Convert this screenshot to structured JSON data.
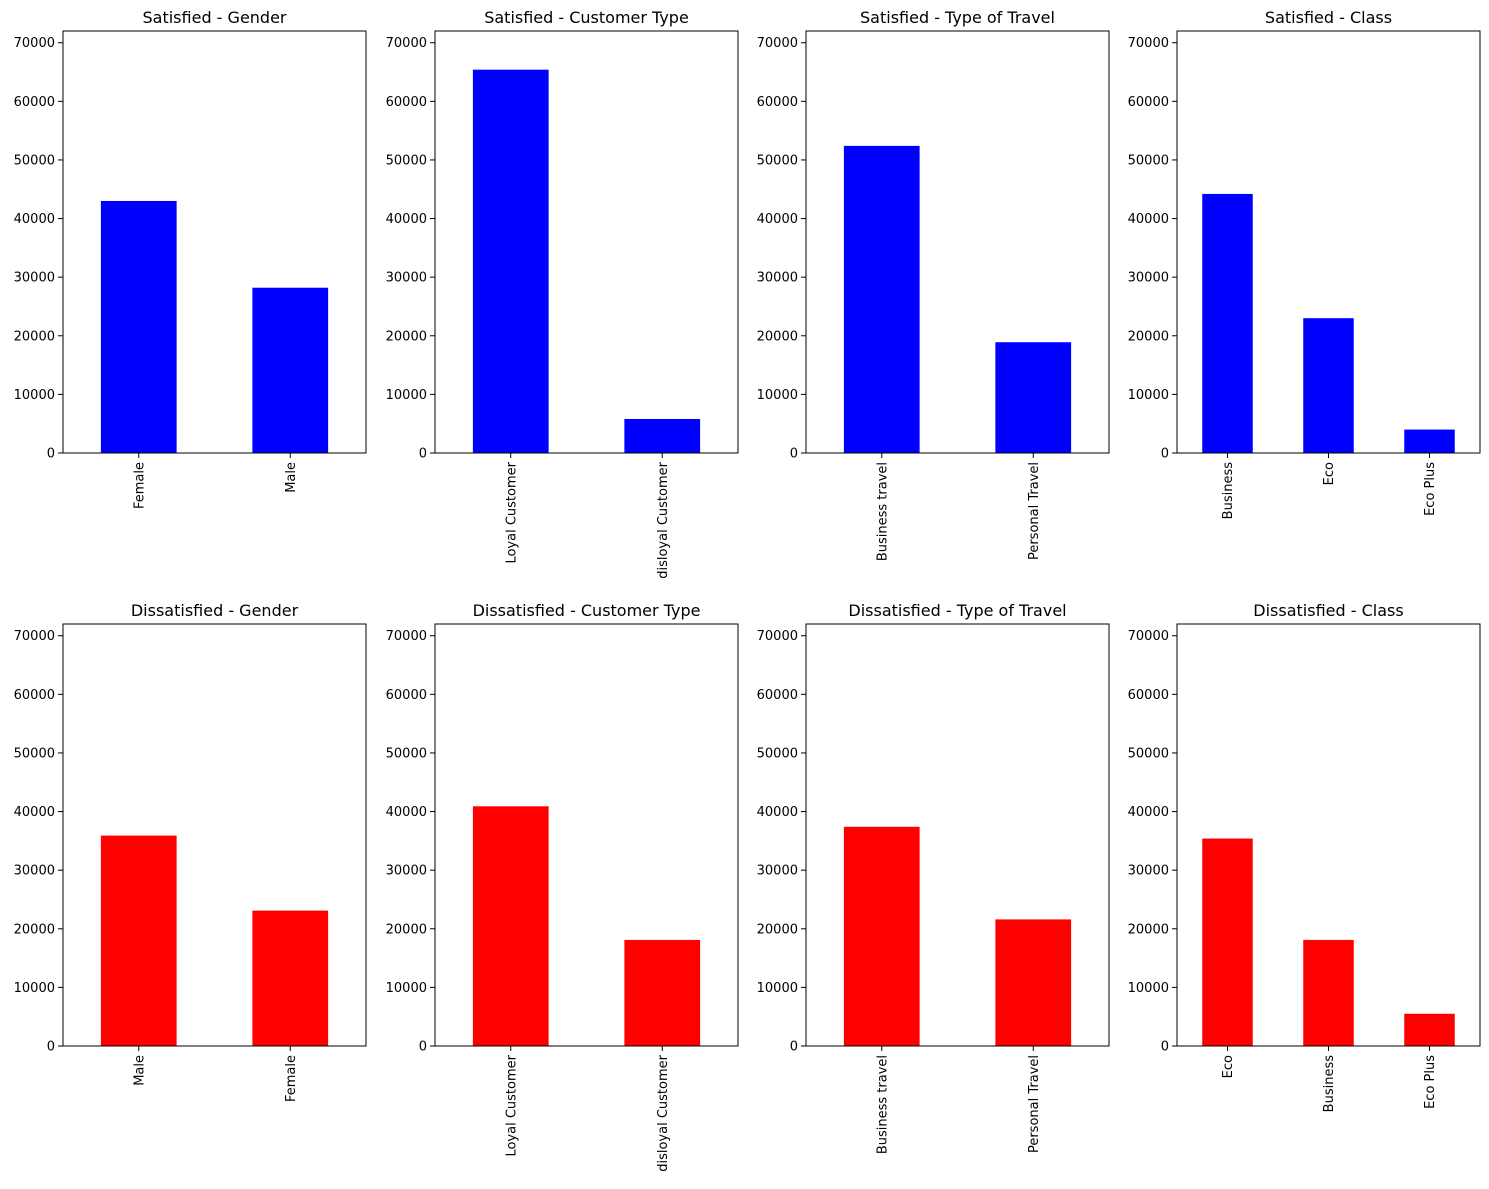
{
  "chart_data": [
    {
      "type": "bar",
      "title": "Satisfied - Gender",
      "categories": [
        "Female",
        "Male"
      ],
      "values": [
        43000,
        28200
      ],
      "color": "#0000ff",
      "ylim": [
        0,
        72000
      ],
      "yticks": [
        0,
        10000,
        20000,
        30000,
        40000,
        50000,
        60000,
        70000
      ],
      "xlabel": "",
      "ylabel": "",
      "grid": false
    },
    {
      "type": "bar",
      "title": "Satisfied - Customer Type",
      "categories": [
        "Loyal Customer",
        "disloyal Customer"
      ],
      "values": [
        65400,
        5800
      ],
      "color": "#0000ff",
      "ylim": [
        0,
        72000
      ],
      "yticks": [
        0,
        10000,
        20000,
        30000,
        40000,
        50000,
        60000,
        70000
      ],
      "xlabel": "",
      "ylabel": "",
      "grid": false
    },
    {
      "type": "bar",
      "title": "Satisfied - Type of Travel",
      "categories": [
        "Business travel",
        "Personal Travel"
      ],
      "values": [
        52400,
        18900
      ],
      "color": "#0000ff",
      "ylim": [
        0,
        72000
      ],
      "yticks": [
        0,
        10000,
        20000,
        30000,
        40000,
        50000,
        60000,
        70000
      ],
      "xlabel": "",
      "ylabel": "",
      "grid": false
    },
    {
      "type": "bar",
      "title": "Satisfied - Class",
      "categories": [
        "Business",
        "Eco",
        "Eco Plus"
      ],
      "values": [
        44200,
        23000,
        4000
      ],
      "color": "#0000ff",
      "ylim": [
        0,
        72000
      ],
      "yticks": [
        0,
        10000,
        20000,
        30000,
        40000,
        50000,
        60000,
        70000
      ],
      "xlabel": "",
      "ylabel": "",
      "grid": false
    },
    {
      "type": "bar",
      "title": "Dissatisfied - Gender",
      "categories": [
        "Male",
        "Female"
      ],
      "values": [
        35900,
        23100
      ],
      "color": "#ff0000",
      "ylim": [
        0,
        72000
      ],
      "yticks": [
        0,
        10000,
        20000,
        30000,
        40000,
        50000,
        60000,
        70000
      ],
      "xlabel": "",
      "ylabel": "",
      "grid": false
    },
    {
      "type": "bar",
      "title": "Dissatisfied - Customer Type",
      "categories": [
        "Loyal Customer",
        "disloyal Customer"
      ],
      "values": [
        40900,
        18100
      ],
      "color": "#ff0000",
      "ylim": [
        0,
        72000
      ],
      "yticks": [
        0,
        10000,
        20000,
        30000,
        40000,
        50000,
        60000,
        70000
      ],
      "xlabel": "",
      "ylabel": "",
      "grid": false
    },
    {
      "type": "bar",
      "title": "Dissatisfied - Type of Travel",
      "categories": [
        "Business travel",
        "Personal Travel"
      ],
      "values": [
        37400,
        21600
      ],
      "color": "#ff0000",
      "ylim": [
        0,
        72000
      ],
      "yticks": [
        0,
        10000,
        20000,
        30000,
        40000,
        50000,
        60000,
        70000
      ],
      "xlabel": "",
      "ylabel": "",
      "grid": false
    },
    {
      "type": "bar",
      "title": "Dissatisfied - Class",
      "categories": [
        "Eco",
        "Business",
        "Eco Plus"
      ],
      "values": [
        35400,
        18100,
        5500
      ],
      "color": "#ff0000",
      "ylim": [
        0,
        72000
      ],
      "yticks": [
        0,
        10000,
        20000,
        30000,
        40000,
        50000,
        60000,
        70000
      ],
      "xlabel": "",
      "ylabel": "",
      "grid": false
    }
  ]
}
